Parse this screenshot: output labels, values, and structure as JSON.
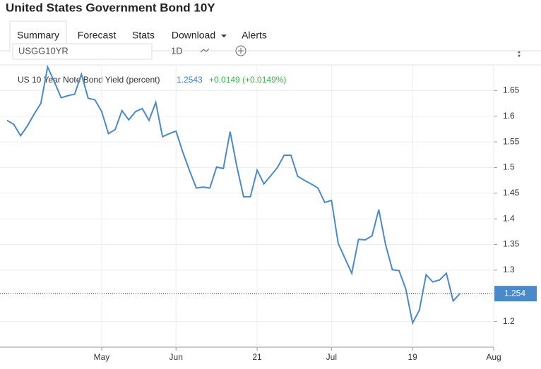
{
  "header": {
    "title": "United States Government Bond 10Y"
  },
  "tabs": [
    "Summary",
    "Forecast",
    "Stats",
    "Download",
    "Alerts"
  ],
  "toolbar": {
    "symbol": "USGG10YR",
    "interval": "1D"
  },
  "chart_data": {
    "type": "line",
    "change": "+0.0149 (+0.0149%)",
    "last_value_label": "1.254",
    "categories": [
      null,
      null,
      null,
      null,
      null,
      null,
      null,
      null,
      null,
      null,
      null,
      null,
      null,
      null,
      "May",
      null,
      null,
      null,
      null,
      null,
      null,
      null,
      null,
      null,
      null,
      "Jun",
      null,
      null,
      null,
      null,
      null,
      null,
      null,
      null,
      null,
      null,
      null,
      "21",
      null,
      null,
      null,
      null,
      null,
      null,
      null,
      null,
      null,
      null,
      "Jul",
      null,
      null,
      null,
      null,
      null,
      null,
      null,
      null,
      null,
      null,
      null,
      "19",
      null,
      null,
      null,
      null,
      null,
      null,
      null,
      null,
      null,
      null,
      null,
      "Aug"
    ],
    "series": [
      {
        "name": "US 10 Year Note Bond Yield (percent)",
        "color": "#4a8ac9",
        "values": [
          1.592,
          1.584,
          1.562,
          1.581,
          1.604,
          1.625,
          1.696,
          1.667,
          1.636,
          1.64,
          1.643,
          1.682,
          1.635,
          1.632,
          1.609,
          1.566,
          1.574,
          1.611,
          1.593,
          1.609,
          1.615,
          1.592,
          1.627,
          1.56,
          1.566,
          1.571,
          1.53,
          1.494,
          1.46,
          1.462,
          1.46,
          1.501,
          1.498,
          1.57,
          1.502,
          1.443,
          1.443,
          1.495,
          1.468,
          1.484,
          1.5,
          1.524,
          1.524,
          1.483,
          1.475,
          1.468,
          1.46,
          1.432,
          1.436,
          1.352,
          1.323,
          1.294,
          1.36,
          1.359,
          1.367,
          1.418,
          1.35,
          1.301,
          1.299,
          1.263,
          1.197,
          1.222,
          1.291,
          1.277,
          1.281,
          1.294,
          1.24,
          1.2543,
          null,
          null,
          null,
          null,
          null
        ]
      }
    ],
    "ylim": [
      1.15,
      1.7
    ],
    "yticks": [
      1.2,
      1.3,
      1.35,
      1.4,
      1.45,
      1.5,
      1.55,
      1.6,
      1.65
    ],
    "grid": true
  }
}
